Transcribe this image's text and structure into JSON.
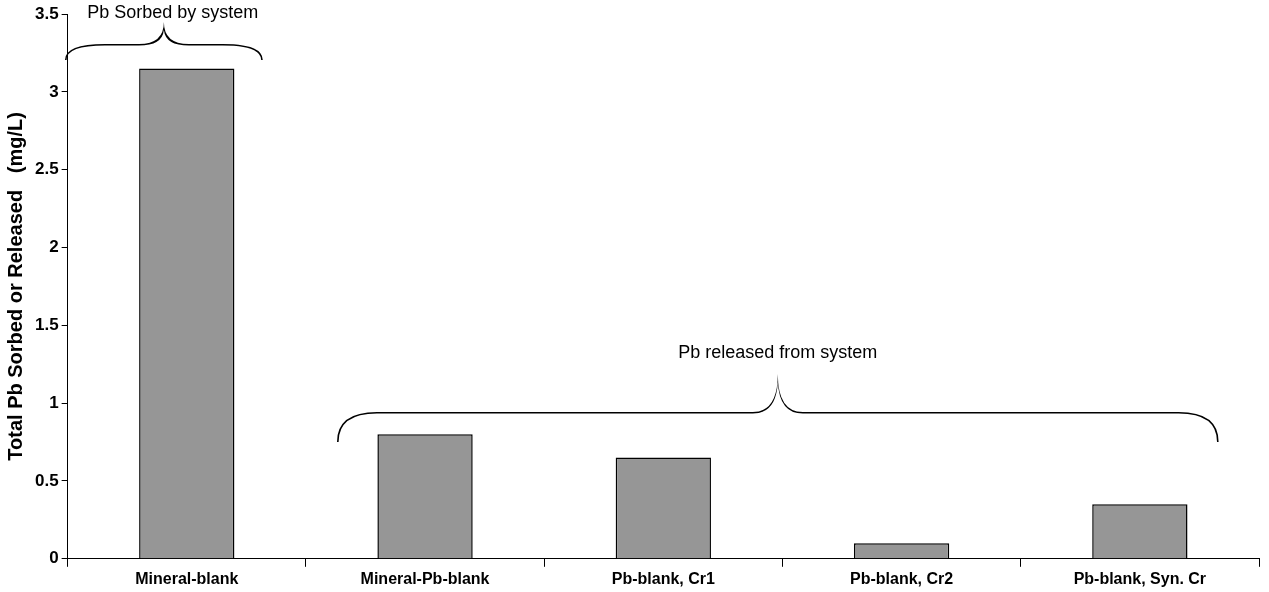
{
  "chart_data": {
    "type": "bar",
    "ylabel": "Total Pb Sorbed or Released   (mg/L)",
    "categories": [
      "Mineral-blank",
      "Mineral-Pb-blank",
      "Pb-blank, Cr1",
      "Pb-blank, Cr2",
      "Pb-blank, Syn. Cr"
    ],
    "values": [
      3.15,
      0.8,
      0.65,
      0.1,
      0.35
    ],
    "color": "#969696",
    "ylim": [
      0,
      3.5
    ],
    "yticks": [
      0,
      0.5,
      1,
      1.5,
      2,
      2.5,
      3,
      3.5
    ],
    "grid": false,
    "legend": false,
    "annotations": [
      "Pb Sorbed by system",
      "Pb released from system"
    ]
  }
}
